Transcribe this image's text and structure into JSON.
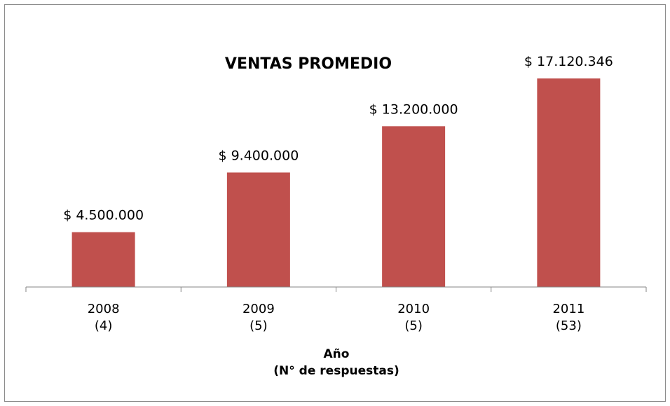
{
  "chart_data": {
    "type": "bar",
    "title": "VENTAS PROMEDIO",
    "x_label": "Año\n(N° de respuestas)",
    "categories": [
      "2008\n(4)",
      "2009\n(5)",
      "2010\n(5)",
      "2011\n(53)"
    ],
    "values": [
      4500000,
      9400000,
      13200000,
      17120346
    ],
    "value_labels": [
      "$ 4.500.000",
      "$ 9.400.000",
      "$ 13.200.000",
      "$ 17.120.346"
    ],
    "color": "#c0504d",
    "ylim": [
      0,
      20000000
    ]
  }
}
